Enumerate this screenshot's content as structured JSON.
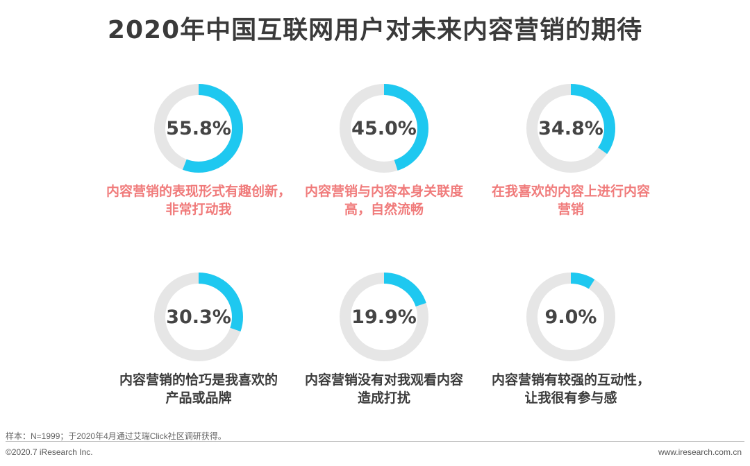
{
  "title": "2020年中国互联网用户对未来内容营销的期待",
  "colors": {
    "accent": "#1ec8f0",
    "track": "#e6e6e6",
    "highlight_label": "#f07b7b",
    "label": "#3c3c3c"
  },
  "chart_data": {
    "type": "pie",
    "style": "donut",
    "title": "2020年中国互联网用户对未来内容营销的期待",
    "unit": "%",
    "items": [
      {
        "value": 55.8,
        "value_label": "55.8%",
        "label_lines": [
          "内容营销的表现形式有趣创新，",
          "非常打动我"
        ],
        "highlight": true
      },
      {
        "value": 45.0,
        "value_label": "45.0%",
        "label_lines": [
          "内容营销与内容本身关联度",
          "高，自然流畅"
        ],
        "highlight": true
      },
      {
        "value": 34.8,
        "value_label": "34.8%",
        "label_lines": [
          "在我喜欢的内容上进行内容",
          "营销"
        ],
        "highlight": true
      },
      {
        "value": 30.3,
        "value_label": "30.3%",
        "label_lines": [
          "内容营销的恰巧是我喜欢的",
          "产品或品牌"
        ],
        "highlight": false
      },
      {
        "value": 19.9,
        "value_label": "19.9%",
        "label_lines": [
          "内容营销没有对我观看内容",
          "造成打扰"
        ],
        "highlight": false
      },
      {
        "value": 9.0,
        "value_label": "9.0%",
        "label_lines": [
          "内容营销有较强的互动性，",
          "让我很有参与感"
        ],
        "highlight": false
      }
    ]
  },
  "footer": {
    "note": "样本：N=1999；于2020年4月通过艾瑞Click社区调研获得。",
    "copyright": "©2020.7 iResearch Inc.",
    "website": "www.iresearch.com.cn"
  }
}
